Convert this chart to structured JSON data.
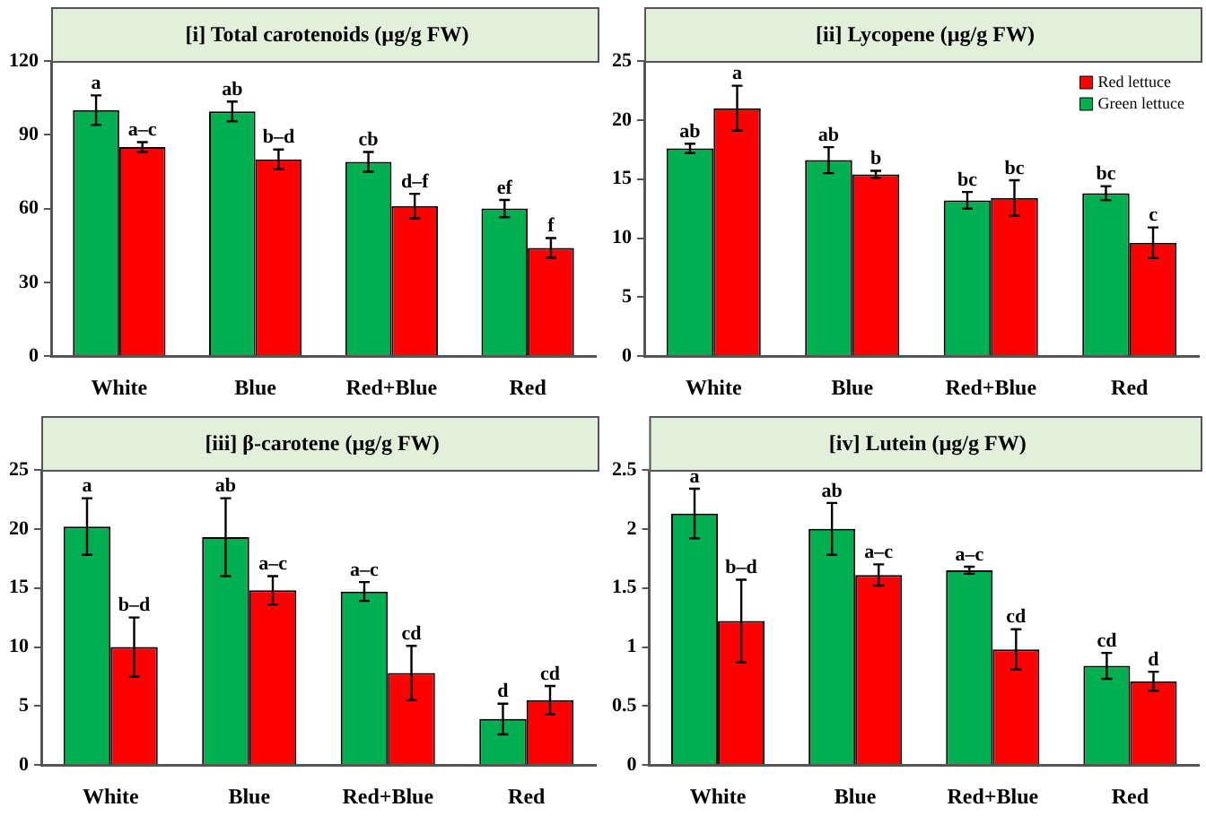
{
  "chart_data": [
    {
      "type": "bar",
      "title": "[i] Total carotenoids (µg/g FW)",
      "categories": [
        "White",
        "Blue",
        "Red+Blue",
        "Red"
      ],
      "ylim": [
        0,
        120
      ],
      "yticks": [
        0,
        30,
        60,
        90,
        120
      ],
      "series": [
        {
          "color": "#00b050",
          "values": [
            100,
            99.5,
            79,
            60
          ],
          "errors": [
            6,
            4,
            4,
            3.5
          ],
          "value_labels": [
            "a",
            "ab",
            "cb",
            "ef"
          ]
        },
        {
          "color": "#ff0000",
          "values": [
            85,
            80,
            61,
            44
          ],
          "errors": [
            2,
            4,
            5,
            4
          ],
          "value_labels": [
            "a–c",
            "b–d",
            "d–f",
            "f"
          ]
        }
      ]
    },
    {
      "type": "bar",
      "title": "[ii] Lycopene (µg/g FW)",
      "categories": [
        "White",
        "Blue",
        "Red+Blue",
        "Red"
      ],
      "ylim": [
        0,
        25
      ],
      "yticks": [
        0,
        5,
        10,
        15,
        20,
        25
      ],
      "legend": "top right",
      "series": [
        {
          "name": "Green lettuce",
          "color": "#00b050",
          "values": [
            17.6,
            16.6,
            13.2,
            13.8
          ],
          "errors": [
            0.4,
            1.1,
            0.7,
            0.6
          ],
          "value_labels": [
            "ab",
            "ab",
            "bc",
            "bc"
          ]
        },
        {
          "name": "Red lettuce",
          "color": "#ff0000",
          "values": [
            21,
            15.4,
            13.4,
            9.6
          ],
          "errors": [
            1.9,
            0.3,
            1.5,
            1.3
          ],
          "value_labels": [
            "a",
            "b",
            "bc",
            "c"
          ]
        }
      ]
    },
    {
      "type": "bar",
      "title": "[iii] β-carotene (µg/g FW)",
      "categories": [
        "White",
        "Blue",
        "Red+Blue",
        "Red"
      ],
      "ylim": [
        0,
        25
      ],
      "yticks": [
        0,
        5,
        10,
        15,
        20,
        25
      ],
      "series": [
        {
          "color": "#00b050",
          "values": [
            20.2,
            19.3,
            14.7,
            3.9
          ],
          "errors": [
            2.4,
            3.3,
            0.8,
            1.3
          ],
          "value_labels": [
            "a",
            "ab",
            "a–c",
            "d"
          ]
        },
        {
          "color": "#ff0000",
          "values": [
            10,
            14.8,
            7.8,
            5.5
          ],
          "errors": [
            2.5,
            1.2,
            2.3,
            1.2
          ],
          "value_labels": [
            "b–d",
            "a–c",
            "cd",
            "cd"
          ]
        }
      ]
    },
    {
      "type": "bar",
      "title": "[iv] Lutein (µg/g FW)",
      "categories": [
        "White",
        "Blue",
        "Red+Blue",
        "Red"
      ],
      "ylim": [
        0,
        2.5
      ],
      "yticks": [
        0,
        0.5,
        1,
        1.5,
        2,
        2.5
      ],
      "series": [
        {
          "color": "#00b050",
          "values": [
            2.13,
            2,
            1.65,
            0.84
          ],
          "errors": [
            0.21,
            0.22,
            0.03,
            0.11
          ],
          "value_labels": [
            "a",
            "ab",
            "a–c",
            "cd"
          ]
        },
        {
          "color": "#ff0000",
          "values": [
            1.22,
            1.61,
            0.98,
            0.71
          ],
          "errors": [
            0.35,
            0.09,
            0.17,
            0.08
          ],
          "value_labels": [
            "b–d",
            "a–c",
            "cd",
            "d"
          ]
        }
      ]
    }
  ]
}
